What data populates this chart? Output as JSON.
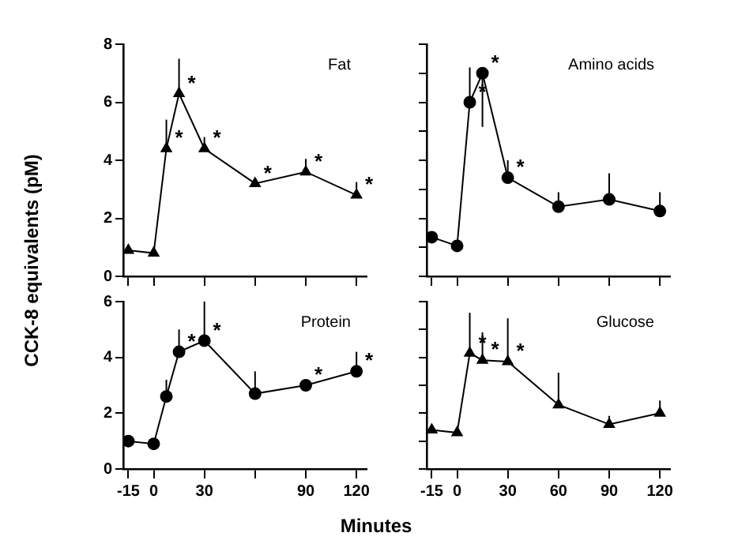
{
  "chart_data": [
    {
      "type": "line",
      "title": "Fat",
      "ylabel": "CCK-8 equivalents (pM)",
      "x": [
        -15,
        0,
        7.5,
        15,
        30,
        60,
        90,
        120
      ],
      "values": [
        0.9,
        0.8,
        4.4,
        6.3,
        4.4,
        3.2,
        3.6,
        2.8
      ],
      "errors": [
        null,
        null,
        [
          4.4,
          5.4
        ],
        [
          6.3,
          7.5
        ],
        [
          4.4,
          4.8
        ],
        null,
        [
          3.6,
          4.05
        ],
        [
          2.8,
          3.25
        ]
      ],
      "color": "#000000",
      "marker": "triangle",
      "xlim": [
        -18,
        126
      ],
      "xticks": [
        {
          "value": -15,
          "label": null
        },
        {
          "value": 0,
          "label": null
        },
        {
          "value": 30,
          "label": null
        },
        {
          "value": 60,
          "label": null
        },
        {
          "value": 90,
          "label": null
        },
        {
          "value": 120,
          "label": null
        }
      ],
      "ylim": [
        0,
        8
      ],
      "yticks": [
        0,
        2,
        4,
        6,
        8
      ],
      "tick_labels": "y",
      "annotations": [
        {
          "text": "*",
          "x": 7.5,
          "y": 4.4
        },
        {
          "text": "*",
          "x": 15,
          "y": 6.3
        },
        {
          "text": "*",
          "x": 30,
          "y": 4.4
        },
        {
          "text": "*",
          "x": 60,
          "y": 3.2
        },
        {
          "text": "*",
          "x": 90,
          "y": 3.6
        },
        {
          "text": "*",
          "x": 120,
          "y": 2.8
        }
      ]
    },
    {
      "type": "line",
      "title": "Amino acids",
      "x": [
        -15,
        0,
        7.5,
        15,
        30,
        60,
        90,
        120
      ],
      "values": [
        1.35,
        1.05,
        6.0,
        7.0,
        3.4,
        2.4,
        2.65,
        2.25
      ],
      "errors": [
        null,
        null,
        [
          6.0,
          7.2
        ],
        [
          5.15,
          7.0
        ],
        [
          3.4,
          4.0
        ],
        [
          2.4,
          2.9
        ],
        [
          2.65,
          3.55
        ],
        [
          2.25,
          2.9
        ]
      ],
      "color": "#000000",
      "marker": "circle",
      "xlim": [
        -18,
        126
      ],
      "xticks": [
        {
          "value": -15,
          "label": null
        },
        {
          "value": 0,
          "label": null
        },
        {
          "value": 30,
          "label": null
        },
        {
          "value": 60,
          "label": null
        },
        {
          "value": 90,
          "label": null
        },
        {
          "value": 120,
          "label": null
        }
      ],
      "ylim": [
        0,
        8
      ],
      "yticks": [
        {
          "value": 0,
          "label": null
        },
        {
          "value": 1,
          "label": null
        },
        {
          "value": 2,
          "label": null
        },
        {
          "value": 3,
          "label": null
        },
        {
          "value": 4,
          "label": null
        },
        {
          "value": 5,
          "label": null
        },
        {
          "value": 6,
          "label": null
        },
        {
          "value": 7,
          "label": null
        },
        {
          "value": 8,
          "label": null
        }
      ],
      "tick_labels": false,
      "annotations": [
        {
          "text": "*",
          "x": 7.5,
          "y": 6.0
        },
        {
          "text": "*",
          "x": 15,
          "y": 7.0
        },
        {
          "text": "*",
          "x": 30,
          "y": 3.4
        }
      ]
    },
    {
      "type": "line",
      "title": "Protein",
      "xlabel": "Minutes",
      "x": [
        -15,
        0,
        7.5,
        15,
        30,
        60,
        90,
        120
      ],
      "values": [
        1.0,
        0.9,
        2.6,
        4.2,
        4.6,
        2.7,
        3.0,
        3.5
      ],
      "errors": [
        null,
        null,
        [
          2.6,
          3.2
        ],
        [
          4.2,
          5.0
        ],
        [
          4.6,
          6.0
        ],
        [
          2.7,
          3.5
        ],
        [
          3.0,
          3.2
        ],
        [
          3.5,
          4.2
        ]
      ],
      "color": "#000000",
      "marker": "circle",
      "xlim": [
        -18,
        126
      ],
      "xticks": [
        -15,
        0,
        30,
        {
          "value": 60,
          "label": null
        },
        90,
        120
      ],
      "ylim": [
        0,
        6
      ],
      "yticks": [
        0,
        2,
        4,
        6
      ],
      "annotations": [
        {
          "text": "*",
          "x": 15,
          "y": 4.2
        },
        {
          "text": "*",
          "x": 30,
          "y": 4.6
        },
        {
          "text": "*",
          "x": 90,
          "y": 3.0
        },
        {
          "text": "*",
          "x": 120,
          "y": 3.5
        }
      ]
    },
    {
      "type": "line",
      "title": "Glucose",
      "x": [
        -15,
        0,
        7.5,
        15,
        30,
        60,
        90,
        120
      ],
      "values": [
        1.4,
        1.3,
        4.15,
        3.9,
        3.85,
        2.3,
        1.6,
        2.0
      ],
      "errors": [
        null,
        null,
        [
          4.15,
          5.6
        ],
        [
          3.9,
          4.9
        ],
        [
          3.85,
          5.4
        ],
        [
          2.3,
          3.45
        ],
        [
          1.6,
          1.9
        ],
        [
          2.0,
          2.45
        ]
      ],
      "color": "#000000",
      "marker": "triangle",
      "xlim": [
        -18,
        126
      ],
      "xticks": [
        -15,
        0,
        30,
        60,
        90,
        120
      ],
      "ylim": [
        0,
        6
      ],
      "yticks": [
        {
          "value": 0,
          "label": null
        },
        {
          "value": 1,
          "label": null
        },
        {
          "value": 2,
          "label": null
        },
        {
          "value": 3,
          "label": null
        },
        {
          "value": 4,
          "label": null
        },
        {
          "value": 5,
          "label": null
        },
        {
          "value": 6,
          "label": null
        }
      ],
      "tick_labels": "x",
      "annotations": [
        {
          "text": "*",
          "x": 7.5,
          "y": 4.15
        },
        {
          "text": "*",
          "x": 15,
          "y": 3.9
        },
        {
          "text": "*",
          "x": 30,
          "y": 3.85
        }
      ]
    }
  ]
}
